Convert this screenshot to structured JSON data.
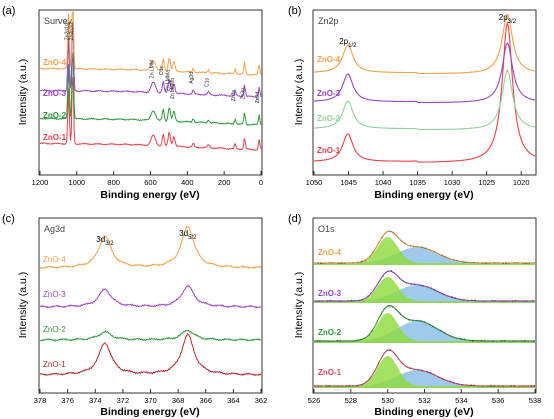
{
  "panels": [
    {
      "tag": "(a)",
      "inner_label": "Survey",
      "xlabel": "Binding energy (eV)",
      "ylabel": "Intensity (a.u.)",
      "x_ticks": [
        "1200",
        "1000",
        "800",
        "600",
        "400",
        "200",
        "0"
      ],
      "colors": {
        "ZnO-1": "#e8414b",
        "ZnO-2": "#2e9a3a",
        "ZnO-3": "#9b45c9",
        "ZnO-4": "#f2a24a"
      },
      "series_labels": [
        "ZnO-4",
        "ZnO-3",
        "ZnO-2",
        "ZnO-1"
      ],
      "annotations": [
        "Zn2p1/2",
        "Zn2p3/2",
        "Zn LMM",
        "O1s",
        "Zn LMMa",
        "Zn LMMb",
        "Ag3d",
        "C1s",
        "Zn3s",
        "Zn3p",
        "Zn3d"
      ]
    },
    {
      "tag": "(b)",
      "inner_label": "Zn2p",
      "xlabel": "Binding energy (eV)",
      "ylabel": "Intensity (a.u.)",
      "x_ticks": [
        "1050",
        "1045",
        "1040",
        "1035",
        "1030",
        "1025",
        "1020"
      ],
      "series_labels": [
        "ZnO-4",
        "ZnO-3",
        "ZnO-2",
        "ZnO-1"
      ],
      "peak_labels": [
        {
          "main": "2p",
          "sub": "1/2"
        },
        {
          "main": "2p",
          "sub": "3/2"
        }
      ]
    },
    {
      "tag": "(c)",
      "inner_label": "Ag3d",
      "xlabel": "Binding energy (eV)",
      "ylabel": "Intensity (a.u.)",
      "x_ticks": [
        "378",
        "376",
        "374",
        "372",
        "370",
        "368",
        "366",
        "364",
        "362"
      ],
      "series_labels": [
        "ZnO-4",
        "ZnO-3",
        "ZnO-2",
        "ZnO-1"
      ],
      "peak_labels": [
        {
          "main": "3d",
          "sub": "3/2"
        },
        {
          "main": "3d",
          "sub": "5/2"
        }
      ]
    },
    {
      "tag": "(d)",
      "inner_label": "O1s",
      "xlabel": "Binding energy (eV)",
      "ylabel": "Intensity (a.u.)",
      "x_ticks": [
        "526",
        "528",
        "530",
        "532",
        "534",
        "536",
        "538"
      ],
      "series_labels": [
        "ZnO-4",
        "ZnO-3",
        "ZnO-2",
        "ZnO-1"
      ],
      "fill_colors": {
        "lattice_oxygen": "#8ed93a",
        "surface_oxygen": "#7fb8e6"
      }
    }
  ],
  "chart_data": [
    {
      "type": "line",
      "title": "Survey",
      "xlabel": "Binding energy (eV)",
      "ylabel": "Intensity (a.u.)",
      "xlim": [
        1200,
        0
      ],
      "x_reversed": true,
      "y_ticks_visible": false,
      "peaks_eV": {
        "Zn2p1/2": 1045,
        "Zn2p3/2": 1022,
        "Zn LMM": 585,
        "O1s": 531,
        "Zn LMMa": 498,
        "Zn LMMb": 473,
        "Ag3d": 368,
        "C1s": 285,
        "Zn3s": 140,
        "Zn3p": 89,
        "Zn3d": 10
      },
      "series": [
        {
          "name": "ZnO-1",
          "color": "#e8414b",
          "offset": 0.0
        },
        {
          "name": "ZnO-2",
          "color": "#2e9a3a",
          "offset": 1.0
        },
        {
          "name": "ZnO-3",
          "color": "#9b45c9",
          "offset": 2.0
        },
        {
          "name": "ZnO-4",
          "color": "#f2a24a",
          "offset": 3.0
        }
      ]
    },
    {
      "type": "line",
      "title": "Zn2p",
      "xlabel": "Binding energy (eV)",
      "ylabel": "Intensity (a.u.)",
      "xlim": [
        1050,
        1018
      ],
      "x_reversed": true,
      "peaks_eV": {
        "2p1/2": 1045.1,
        "2p3/2": 1022.0
      },
      "series": [
        {
          "name": "ZnO-1",
          "color": "#e8414b",
          "offset": 0.0
        },
        {
          "name": "ZnO-2",
          "color": "#8fd49a",
          "offset": 1.0
        },
        {
          "name": "ZnO-3",
          "color": "#9b45c9",
          "offset": 2.0
        },
        {
          "name": "ZnO-4",
          "color": "#f2a24a",
          "offset": 3.0
        }
      ]
    },
    {
      "type": "line",
      "title": "Ag3d",
      "xlabel": "Binding energy (eV)",
      "ylabel": "Intensity (a.u.)",
      "xlim": [
        378,
        362
      ],
      "x_reversed": true,
      "peaks_eV": {
        "3d3/2": 373.3,
        "3d5/2": 367.3
      },
      "series": [
        {
          "name": "ZnO-1",
          "color": "#b02a2f",
          "offset": 0.0,
          "peak_heights": [
            1.0,
            1.25
          ]
        },
        {
          "name": "ZnO-2",
          "color": "#2e9a3a",
          "offset": 1.0,
          "peak_heights": [
            0.25,
            0.3
          ]
        },
        {
          "name": "ZnO-3",
          "color": "#9b45c9",
          "offset": 2.0,
          "peak_heights": [
            0.55,
            0.65
          ]
        },
        {
          "name": "ZnO-4",
          "color": "#f2a24a",
          "offset": 3.0,
          "peak_heights": [
            1.0,
            1.3
          ]
        }
      ]
    },
    {
      "type": "area",
      "title": "O1s",
      "xlabel": "Binding energy (eV)",
      "ylabel": "Intensity (a.u.)",
      "xlim": [
        526,
        538
      ],
      "x_reversed": false,
      "components_eV": {
        "lattice_oxygen": 530.0,
        "surface_oxygen": 531.6
      },
      "series": [
        {
          "name": "ZnO-1",
          "color": "#d84a55",
          "offset": 0.0
        },
        {
          "name": "ZnO-2",
          "color": "#2e9a3a",
          "offset": 1.0
        },
        {
          "name": "ZnO-3",
          "color": "#9b45c9",
          "offset": 2.0
        },
        {
          "name": "ZnO-4",
          "color": "#f2a24a",
          "offset": 3.0
        }
      ]
    }
  ]
}
